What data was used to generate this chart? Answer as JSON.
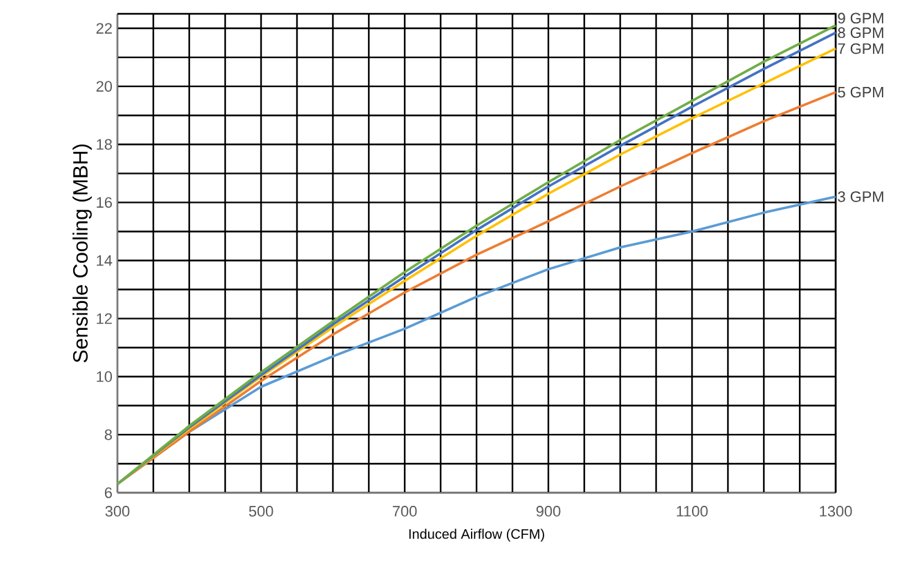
{
  "chart_data": {
    "type": "line",
    "xlabel": "Induced Airflow (CFM)",
    "ylabel": "Sensible Cooling (MBH)",
    "x": [
      300,
      400,
      500,
      600,
      700,
      800,
      900,
      1000,
      1100,
      1200,
      1300
    ],
    "series": [
      {
        "name": "3 GPM",
        "color": "#5b9bd5",
        "values": [
          6.3,
          8.1,
          9.65,
          10.7,
          11.65,
          12.75,
          13.7,
          14.45,
          15.0,
          15.65,
          16.2
        ]
      },
      {
        "name": "5 GPM",
        "color": "#ed7d31",
        "values": [
          6.3,
          8.1,
          9.85,
          11.45,
          12.9,
          14.2,
          15.35,
          16.55,
          17.7,
          18.8,
          19.8
        ]
      },
      {
        "name": "7 GPM",
        "color": "#ffc000",
        "values": [
          6.3,
          8.2,
          10.0,
          11.7,
          13.3,
          14.85,
          16.3,
          17.65,
          18.9,
          20.1,
          21.3
        ]
      },
      {
        "name": "8 GPM",
        "color": "#4472c4",
        "values": [
          6.3,
          8.25,
          10.05,
          11.8,
          13.45,
          15.05,
          16.55,
          17.95,
          19.3,
          20.6,
          21.85
        ]
      },
      {
        "name": "9 GPM",
        "color": "#70ad47",
        "values": [
          6.3,
          8.3,
          10.15,
          11.9,
          13.6,
          15.2,
          16.7,
          18.15,
          19.5,
          20.85,
          22.1
        ]
      }
    ],
    "xlim": [
      300,
      1300
    ],
    "ylim": [
      6,
      22.5
    ],
    "xticks": [
      300,
      {
        "value": 350,
        "label": null
      },
      {
        "value": 400,
        "label": null
      },
      {
        "value": 450,
        "label": null
      },
      500,
      {
        "value": 550,
        "label": null
      },
      {
        "value": 600,
        "label": null
      },
      {
        "value": 650,
        "label": null
      },
      700,
      {
        "value": 750,
        "label": null
      },
      {
        "value": 800,
        "label": null
      },
      {
        "value": 850,
        "label": null
      },
      900,
      {
        "value": 950,
        "label": null
      },
      {
        "value": 1000,
        "label": null
      },
      {
        "value": 1050,
        "label": null
      },
      1100,
      {
        "value": 1150,
        "label": null
      },
      {
        "value": 1200,
        "label": null
      },
      {
        "value": 1250,
        "label": null
      },
      1300
    ],
    "yticks": [
      6,
      {
        "value": 7,
        "label": null
      },
      8,
      {
        "value": 9,
        "label": null
      },
      10,
      {
        "value": 11,
        "label": null
      },
      12,
      {
        "value": 13,
        "label": null
      },
      14,
      {
        "value": 15,
        "label": null
      },
      16,
      {
        "value": 17,
        "label": null
      },
      18,
      {
        "value": 19,
        "label": null
      },
      20,
      {
        "value": 21,
        "label": null
      },
      22
    ],
    "grid": true,
    "legend": false,
    "marker": "none",
    "line_style": "solid"
  }
}
